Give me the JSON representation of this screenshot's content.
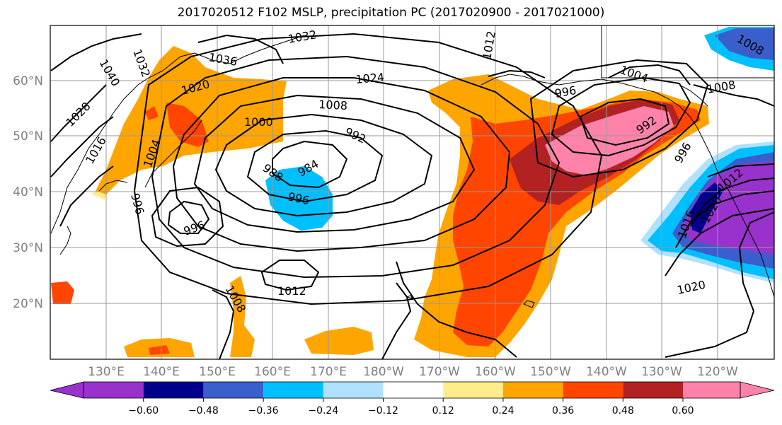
{
  "title": "2017020512 F102 MSLP, precipitation PC (2017020900 - 2017021000)",
  "lat_labels": [
    "60°N",
    "50°N",
    "40°N",
    "30°N",
    "20°N"
  ],
  "lon_labels": [
    "130°E",
    "140°E",
    "150°E",
    "160°E",
    "170°E",
    "180°W",
    "170°W",
    "160°W",
    "150°W",
    "140°W",
    "130°W",
    "120°W"
  ],
  "colorbar": {
    "ticks": [
      "−0.60",
      "−0.48",
      "−0.36",
      "−0.24",
      "−0.12",
      "0.12",
      "0.24",
      "0.36",
      "0.48",
      "0.60"
    ],
    "colors": [
      "#9932cc",
      "#00008b",
      "#3a5fcd",
      "#00bfff",
      "#b0e2ff",
      "#ffffff",
      "#ffec8b",
      "#ffa500",
      "#ff4500",
      "#b22222",
      "#ff82ab"
    ]
  },
  "contour_labels": [
    {
      "text": "1032"
    },
    {
      "text": "1036"
    },
    {
      "text": "1040"
    },
    {
      "text": "1032"
    },
    {
      "text": "1028"
    },
    {
      "text": "1024"
    },
    {
      "text": "1020"
    },
    {
      "text": "1016"
    },
    {
      "text": "1012"
    },
    {
      "text": "1008"
    },
    {
      "text": "1004"
    },
    {
      "text": "1000"
    },
    {
      "text": "996"
    },
    {
      "text": "992"
    },
    {
      "text": "988"
    },
    {
      "text": "984"
    },
    {
      "text": "996"
    },
    {
      "text": "996"
    },
    {
      "text": "1012"
    },
    {
      "text": "1008"
    },
    {
      "text": "1004"
    },
    {
      "text": "996"
    },
    {
      "text": "1008"
    },
    {
      "text": "992"
    },
    {
      "text": "996"
    },
    {
      "text": "1016"
    },
    {
      "text": "1012"
    },
    {
      "text": "1020"
    },
    {
      "text": "1008"
    },
    {
      "text": "1020"
    }
  ]
}
